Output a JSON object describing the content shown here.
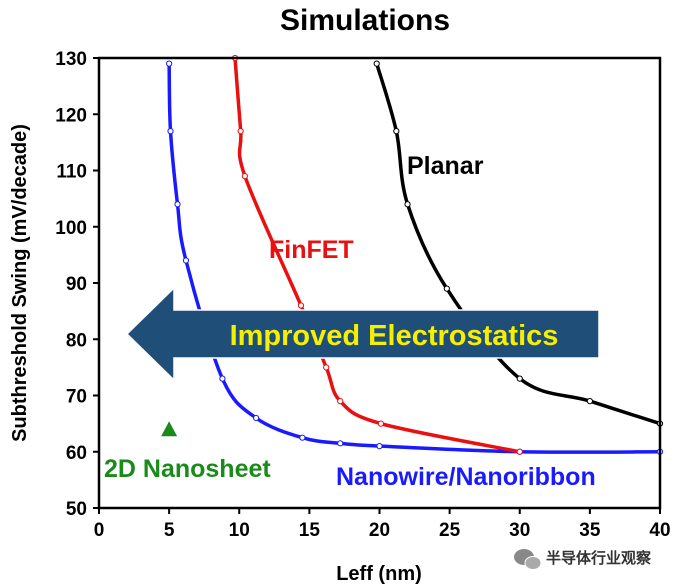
{
  "chart_data": {
    "type": "line",
    "title": "Simulations",
    "xlabel": "Leff (nm)",
    "ylabel": "Subthreshold Swing (mV/decade)",
    "xlim": [
      0,
      40
    ],
    "ylim": [
      50,
      130
    ],
    "x_ticks": [
      "0",
      "5",
      "10",
      "15",
      "20",
      "25",
      "30",
      "35",
      "40"
    ],
    "y_ticks": [
      "50",
      "60",
      "70",
      "80",
      "90",
      "100",
      "110",
      "120",
      "130"
    ],
    "grid": false,
    "series": [
      {
        "name": "Nanowire/Nanoribbon",
        "color": "#1a1aff",
        "points": [
          [
            5,
            129
          ],
          [
            5.1,
            117
          ],
          [
            5.6,
            104
          ],
          [
            6.2,
            94
          ],
          [
            8.8,
            73
          ],
          [
            11.2,
            66
          ],
          [
            14.5,
            62.5
          ],
          [
            17.2,
            61.5
          ],
          [
            20,
            61
          ],
          [
            30,
            60
          ],
          [
            40,
            60
          ]
        ]
      },
      {
        "name": "FinFET",
        "color": "#e81010",
        "points": [
          [
            9.7,
            130
          ],
          [
            10.1,
            117
          ],
          [
            10.4,
            109
          ],
          [
            14.4,
            86
          ],
          [
            16.2,
            75
          ],
          [
            17.2,
            69
          ],
          [
            20.1,
            65
          ],
          [
            30,
            60
          ]
        ]
      },
      {
        "name": "Planar",
        "color": "#000000",
        "points": [
          [
            19.8,
            129
          ],
          [
            21.2,
            117
          ],
          [
            22,
            104
          ],
          [
            24.8,
            89
          ],
          [
            30,
            73
          ],
          [
            35,
            69
          ],
          [
            40,
            65
          ]
        ]
      }
    ],
    "markers": [
      {
        "name": "2D Nanosheet",
        "shape": "triangle",
        "color": "#1a8a1a",
        "x": 5,
        "y": 64
      }
    ],
    "annotations": [
      {
        "text": "Improved Electrostatics",
        "type": "arrow-left",
        "color": "#1f4e79",
        "text_color": "#f5f000"
      }
    ]
  },
  "watermark": {
    "text": "半导体行业观察",
    "icon": "wechat-icon"
  }
}
